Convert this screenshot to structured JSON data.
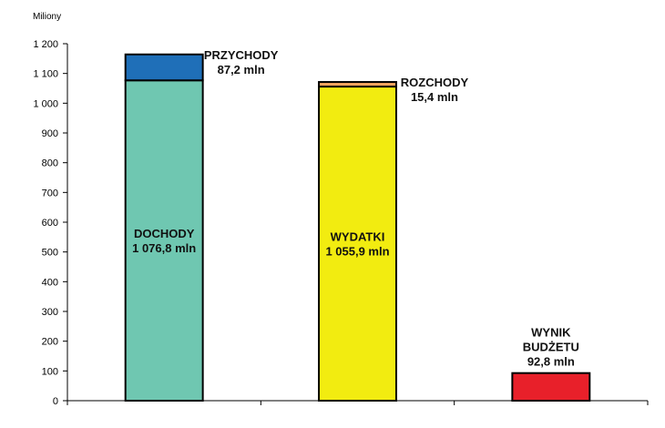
{
  "chart_data": {
    "type": "bar",
    "ylabel": "Miliony",
    "ylim": [
      0,
      1200
    ],
    "ytick_step": 100,
    "yticks": [
      "0",
      "100",
      "200",
      "300",
      "400",
      "500",
      "600",
      "700",
      "800",
      "900",
      "1 000",
      "1 100",
      "1 200"
    ],
    "grid": false,
    "bars": [
      {
        "segments": [
          {
            "name": "DOCHODY",
            "value": 1076.8,
            "color": "#6fc7b1",
            "label": [
              "DOCHODY",
              "1 076,8 mln"
            ],
            "label_pos": "inside"
          },
          {
            "name": "PRZYCHODY",
            "value": 87.2,
            "color": "#1f6fb8",
            "label": [
              "PRZYCHODY",
              "87,2 mln"
            ],
            "label_pos": "right"
          }
        ]
      },
      {
        "segments": [
          {
            "name": "WYDATKI",
            "value": 1055.9,
            "color": "#f2ec10",
            "label": [
              "WYDATKI",
              "1 055,9 mln"
            ],
            "label_pos": "inside"
          },
          {
            "name": "ROZCHODY",
            "value": 15.4,
            "color": "#f4a460",
            "label": [
              "ROZCHODY",
              "15,4 mln"
            ],
            "label_pos": "right"
          }
        ]
      },
      {
        "segments": [
          {
            "name": "WYNIK BUDŻETU",
            "value": 92.8,
            "color": "#e8202a",
            "label": [
              "WYNIK",
              "BUDŻETU",
              "92,8 mln"
            ],
            "label_pos": "above"
          }
        ]
      }
    ]
  }
}
